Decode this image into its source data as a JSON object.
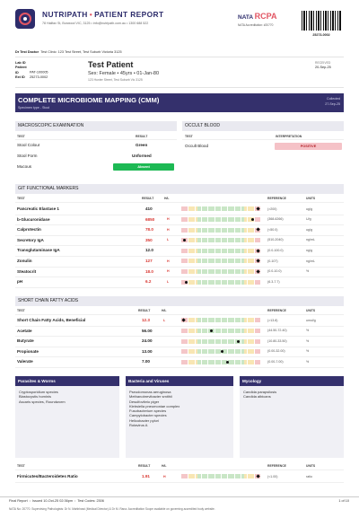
{
  "header": {
    "brand": "NUTRIPATH",
    "separator": "•",
    "report_title": "PATIENT REPORT",
    "address": "78 Halifax St, Burwood VIC, 3125  •  info@nutripath.com.au  •  1300 688 522",
    "nata_label": "NATA",
    "rcpa_label": "RCPA",
    "accreditation": "NATA Accreditation: #20770",
    "barcode_number": "25273-0002"
  },
  "doctor": {
    "label": "Dr Test Doctor",
    "clinic": "Test Clinic: 123 Test Street, Test Suburb Victoria 3125"
  },
  "patient": {
    "lab_id_label": "Lab ID",
    "lab_id": "",
    "patient_id_label": "Patient ID",
    "patient_id": "PAT-100005",
    "ext_id_label": "Ext ID",
    "ext_id": "25273-0002",
    "name": "Test Patient",
    "details": "Sex: Female  •  45yrs  •  01-Jan-80",
    "address": "123 Hunter Street, Test Suburb Vic 3125",
    "received_label": "RECEIVED",
    "received_date": "20-Sep-25"
  },
  "banner": {
    "title": "COMPLETE MICROBIOME MAPPING (CMM)",
    "specimen": "Specimen type - Stool",
    "collected_label": "Collected",
    "collected_date": "27-Sep-25"
  },
  "macroscopic": {
    "title": "MACROSCOPIC EXAMINATION",
    "col_test": "TEST",
    "col_result": "RESULT",
    "rows": [
      {
        "test": "Stool Colour",
        "result": "Green"
      },
      {
        "test": "Stool Form",
        "result": "Unformed"
      },
      {
        "test": "Mucous",
        "result": "Absent"
      }
    ]
  },
  "occult": {
    "title": "OCCULT BLOOD",
    "col_test": "TEST",
    "col_interp": "INTERPRETATION",
    "rows": [
      {
        "test": "Occult Blood",
        "result": "POSITIVE"
      }
    ]
  },
  "git": {
    "title": "GIT FUNCTIONAL MARKERS",
    "cols": {
      "test": "TEST",
      "result": "RESULT",
      "hl": "H/L",
      "ref": "REFERENCE",
      "units": "UNITS"
    },
    "rows": [
      {
        "test": "Pancreatic Elastase 1",
        "result": "410",
        "hl": "",
        "ref": "(>200)",
        "units": "ug/g",
        "level": 0.97,
        "marker": "diamond",
        "high": false
      },
      {
        "test": "b-Glucuronidase",
        "result": "6850",
        "hl": "H",
        "ref": "(368-6266)",
        "units": "U/g",
        "level": 0.9,
        "marker": "dot",
        "high": true
      },
      {
        "test": "Calprotectin",
        "result": "78.0",
        "hl": "H",
        "ref": "(<50.0)",
        "units": "ug/g",
        "level": 0.97,
        "marker": "diamond",
        "high": true
      },
      {
        "test": "Secretory IgA",
        "result": "350",
        "hl": "L",
        "ref": "(510-2040)",
        "units": "ng/mL",
        "level": 0.04,
        "marker": "dot",
        "high": true
      },
      {
        "test": "Transglutaminase IgA",
        "result": "12.0",
        "hl": "",
        "ref": "(0.0-100.0)",
        "units": "ng/g",
        "level": 0.97,
        "marker": "diamond",
        "high": false
      },
      {
        "test": "Zonulin",
        "result": "127",
        "hl": "H",
        "ref": "(0-107)",
        "units": "ng/mL",
        "level": 0.97,
        "marker": "diamond",
        "high": true
      },
      {
        "test": "Steatocrit",
        "result": "18.0",
        "hl": "H",
        "ref": "(0.0-10.0)",
        "units": "%",
        "level": 0.97,
        "marker": "diamond",
        "high": true
      },
      {
        "test": "pH",
        "result": "6.2",
        "hl": "L",
        "ref": "(6.3-7.7)",
        "units": "",
        "level": 0.06,
        "marker": "dot",
        "high": true
      }
    ]
  },
  "scfa": {
    "title": "SHORT CHAIN FATTY ACIDS",
    "cols": {
      "test": "TEST",
      "result": "RESULT",
      "hl": "H/L",
      "ref": "REFERENCE",
      "units": "UNITS"
    },
    "rows": [
      {
        "test": "Short Chain Fatty Acids, Beneficial",
        "result": "12.3",
        "hl": "L",
        "ref": "(>13.8)",
        "units": "umol/g",
        "level": 0.03,
        "marker": "diamond",
        "high": true
      },
      {
        "test": "Acetate",
        "result": "56.00",
        "hl": "",
        "ref": "(44.50-72.40)",
        "units": "%",
        "level": 0.38,
        "marker": "dot",
        "high": false
      },
      {
        "test": "Butyrate",
        "result": "24.00",
        "hl": "",
        "ref": "(10.80-33.50)",
        "units": "%",
        "level": 0.72,
        "marker": "dot",
        "high": false
      },
      {
        "test": "Propionate",
        "result": "13.00",
        "hl": "",
        "ref": "(0.00-32.00)",
        "units": "%",
        "level": 0.52,
        "marker": "dot",
        "high": false
      },
      {
        "test": "Valerate",
        "result": "7.00",
        "hl": "",
        "ref": "(0.00-7.00)",
        "units": "%",
        "level": 0.58,
        "marker": "dot",
        "high": false
      }
    ]
  },
  "micro": {
    "parasites": {
      "title": "Parasites & Worms",
      "items": [
        "Cryptosporidium species",
        "Blastocystis hominis",
        "Ascaris species, Roundworm"
      ]
    },
    "bacteria": {
      "title": "Bacteria and Viruses",
      "items": [
        "Pseudomonas aeruginosa",
        "Methanobrevibacter smithii",
        "Desulfovibrio piger",
        "Klebsiella pneumoniae complex",
        "Fusobacterium species",
        "Campylobacter species",
        "Helicobacter pylori",
        "Rotavirus A"
      ]
    },
    "mycology": {
      "title": "Mycology",
      "items": [
        "Candida parapsilosis",
        "Candida albicans"
      ]
    }
  },
  "ratio": {
    "cols": {
      "test": "TEST",
      "result": "RESULT",
      "hl": "H/L",
      "ref": "REFERENCE",
      "units": "UNITS"
    },
    "rows": [
      {
        "test": "Firmicutes/Bacteroidetes Ratio",
        "result": "1.91",
        "hl": "H",
        "ref": "(<1.00)",
        "units": "ratio",
        "level": 0.97,
        "marker": "diamond",
        "high": true
      }
    ]
  },
  "footer": {
    "report_status": "Final Report",
    "issued": "Issued 10-Oct-25 02:36pm",
    "test_codes": "Test Codes: 2306",
    "page": "1 of 10",
    "notes": "NATA No: 20770. Supervising Pathologists: Dr N. Mahbhawi (Medical Director) & Dr M. Rana. Accreditation Scope available on governing accredited body website."
  }
}
